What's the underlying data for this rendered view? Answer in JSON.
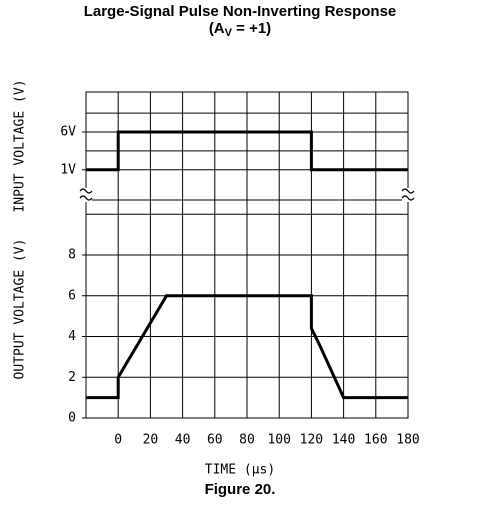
{
  "chart_data": {
    "type": "line",
    "title": "Large-Signal Pulse Non-Inverting Response",
    "subtitle_parts": [
      "(A",
      "V",
      " = +1)"
    ],
    "xlabel": "TIME (μs)",
    "caption": "Figure 20.",
    "xlim": [
      -20,
      180
    ],
    "xticks": [
      0,
      20,
      40,
      60,
      80,
      100,
      120,
      140,
      160,
      180
    ],
    "color": "#000000",
    "panels": [
      {
        "ylabel": "INPUT VOLTAGE (V)",
        "ylim": [
          -3,
          11.3
        ],
        "yticks": [
          {
            "value": 1,
            "label": "1V"
          },
          {
            "value": 6,
            "label": "6V"
          }
        ],
        "ygrid": [
          1,
          3.5,
          6,
          8.5
        ],
        "x": [
          -20,
          0,
          0,
          120,
          120,
          180
        ],
        "values": [
          1,
          1,
          6,
          6,
          1,
          1
        ]
      },
      {
        "ylabel": "OUTPUT VOLTAGE (V)",
        "ylim": [
          0,
          10.7
        ],
        "yticks": [
          0,
          2,
          4,
          6,
          8
        ],
        "ygrid": [
          0,
          2,
          4,
          6,
          8,
          10
        ],
        "x": [
          -20,
          0,
          0,
          30,
          120,
          120,
          125,
          140,
          180
        ],
        "values": [
          1,
          1,
          2,
          6,
          6,
          4.4,
          3.6,
          1,
          1
        ]
      }
    ]
  }
}
